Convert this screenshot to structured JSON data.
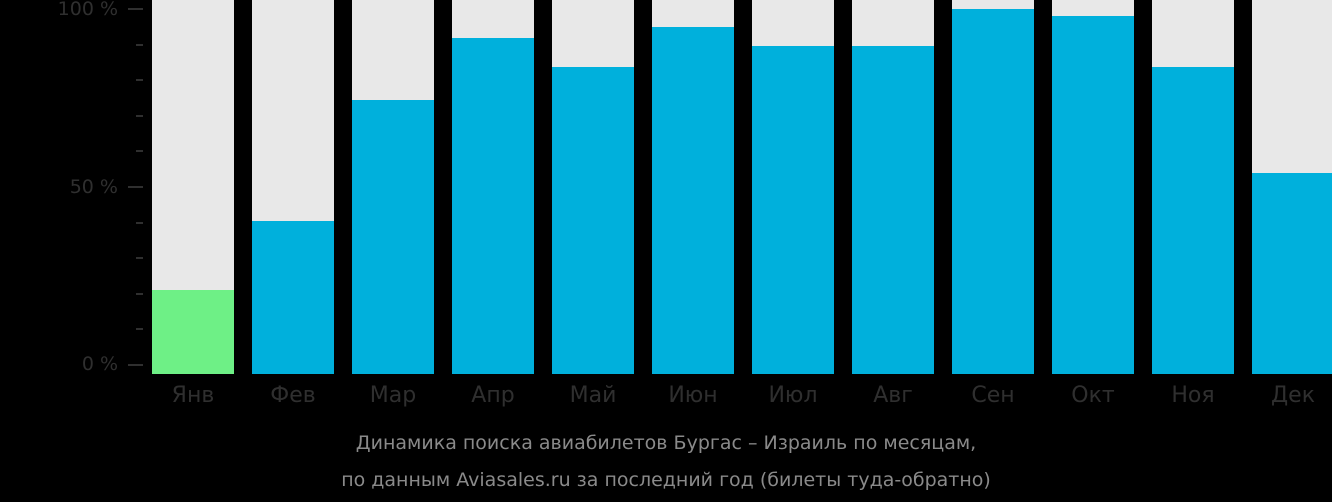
{
  "chart_data": {
    "type": "bar",
    "title": "Динамика поиска авиабилетов Бургас – Израиль по месяцам,",
    "subtitle": "по данным Aviasales.ru за последний год (билеты туда-обратно)",
    "xlabel": "",
    "ylabel": "",
    "ylim": [
      0,
      100
    ],
    "y_ticks": [
      "0 %",
      "50 %",
      "100 %"
    ],
    "categories": [
      "Янв",
      "Фев",
      "Мар",
      "Апр",
      "Май",
      "Июн",
      "Июл",
      "Авг",
      "Сен",
      "Окт",
      "Ноя",
      "Дек"
    ],
    "values": [
      23,
      42,
      75,
      92,
      84,
      95,
      90,
      90,
      100,
      98,
      84,
      55
    ],
    "highlight_index": 0,
    "colors": {
      "bar": "#00b0dc",
      "highlight": "#6ef086",
      "track": "#e8e8e8",
      "background": "#000000"
    },
    "grid": false,
    "legend": "none"
  },
  "axis": {
    "y100": "100 %",
    "y50": "50 %",
    "y0": "0 %"
  },
  "months": [
    "Янв",
    "Фев",
    "Мар",
    "Апр",
    "Май",
    "Июн",
    "Июл",
    "Авг",
    "Сен",
    "Окт",
    "Ноя",
    "Дек"
  ],
  "caption": {
    "line1": "Динамика поиска авиабилетов Бургас – Израиль по месяцам,",
    "line2": "по данным Aviasales.ru за последний год (билеты туда-обратно)"
  }
}
